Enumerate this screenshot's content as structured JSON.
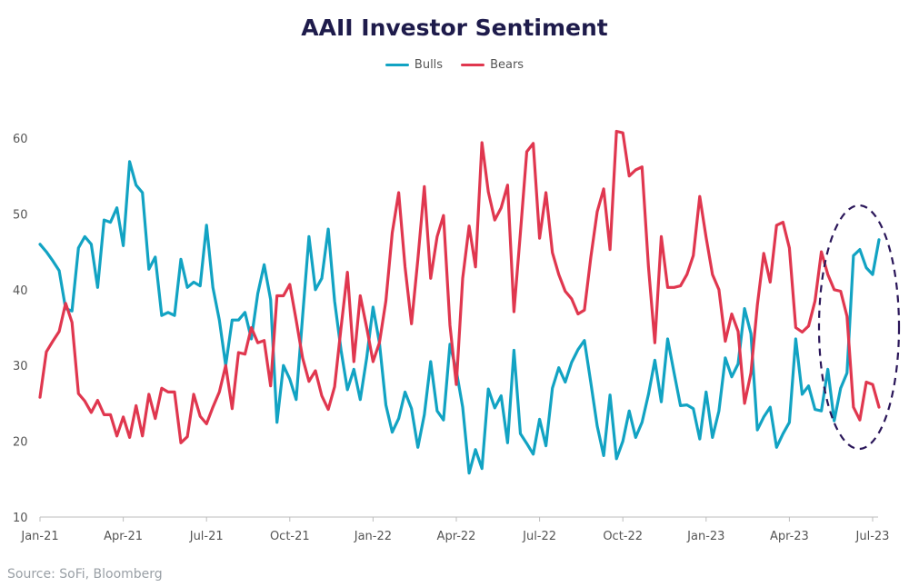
{
  "chart_data": {
    "type": "line",
    "title": "AAII Investor Sentiment",
    "xlabel": "",
    "ylabel": "",
    "ylim": [
      10,
      60
    ],
    "yticks": [
      10,
      20,
      30,
      40,
      50,
      60
    ],
    "x_tick_labels": [
      "Jan-21",
      "Apr-21",
      "Jul-21",
      "Oct-21",
      "Jan-22",
      "Apr-22",
      "Jul-22",
      "Oct-22",
      "Jan-23",
      "Apr-23",
      "Jul-23"
    ],
    "x_unit": "weeks since Jan-21",
    "x_ticks_week": [
      0,
      13,
      26,
      39,
      52,
      65,
      78,
      91,
      104,
      117,
      130
    ],
    "series": [
      {
        "name": "Bulls",
        "color": "#12a3c3",
        "values": [
          46.0,
          45.0,
          43.8,
          42.5,
          37.5,
          37.2,
          45.5,
          47.0,
          46.0,
          40.3,
          49.2,
          48.9,
          50.8,
          45.8,
          56.9,
          53.8,
          52.8,
          42.7,
          44.3,
          36.6,
          37.0,
          36.6,
          44.0,
          40.3,
          41.0,
          40.5,
          48.5,
          40.3,
          36.0,
          30.0,
          36.0,
          36.0,
          37.0,
          33.5,
          39.5,
          43.3,
          38.7,
          22.5,
          30.0,
          28.2,
          25.5,
          36.5,
          47.0,
          40.0,
          41.5,
          48.0,
          38.5,
          32.0,
          26.8,
          29.5,
          25.5,
          31.0,
          37.7,
          33.0,
          24.8,
          21.2,
          23.0,
          26.5,
          24.3,
          19.2,
          23.5,
          30.5,
          24.0,
          22.8,
          32.8,
          29.3,
          24.5,
          15.8,
          18.9,
          16.4,
          26.9,
          24.4,
          26.0,
          19.8,
          32.0,
          21.0,
          19.7,
          18.3,
          22.9,
          19.4,
          27.0,
          29.7,
          27.8,
          30.4,
          32.1,
          33.3,
          27.7,
          22.0,
          18.1,
          26.1,
          17.7,
          20.0,
          24.0,
          20.5,
          22.5,
          26.2,
          30.7,
          25.2,
          33.5,
          29.0,
          24.7,
          24.8,
          24.3,
          20.3,
          26.5,
          20.5,
          24.0,
          31.0,
          28.5,
          30.2,
          37.5,
          34.2,
          21.5,
          23.2,
          24.5,
          19.2,
          21.0,
          22.5,
          33.5,
          26.2,
          27.3,
          24.2,
          24.0,
          29.5,
          22.7,
          27.0,
          29.0,
          44.5,
          45.3,
          42.9,
          42.0,
          46.6
        ]
      },
      {
        "name": "Bears",
        "color": "#e0374f",
        "values": [
          25.8,
          31.8,
          33.2,
          34.5,
          38.2,
          35.7,
          26.3,
          25.3,
          23.8,
          25.4,
          23.5,
          23.5,
          20.7,
          23.2,
          20.5,
          24.7,
          20.7,
          26.2,
          23.0,
          27.0,
          26.5,
          26.5,
          19.8,
          20.6,
          26.2,
          23.3,
          22.3,
          24.5,
          26.5,
          30.0,
          24.3,
          31.7,
          31.5,
          35.0,
          33.0,
          33.3,
          27.3,
          39.2,
          39.2,
          40.7,
          36.0,
          31.0,
          27.9,
          29.3,
          26.0,
          24.2,
          27.2,
          35.0,
          42.3,
          30.5,
          39.2,
          35.0,
          30.5,
          33.0,
          38.5,
          47.5,
          52.8,
          43.0,
          35.5,
          44.0,
          53.6,
          41.5,
          47.0,
          49.8,
          35.3,
          27.5,
          41.5,
          48.4,
          43.0,
          59.4,
          52.9,
          49.2,
          50.8,
          53.8,
          37.1,
          47.5,
          58.2,
          59.3,
          46.8,
          52.8,
          44.9,
          42.0,
          39.8,
          38.8,
          36.8,
          37.3,
          44.3,
          50.3,
          53.3,
          45.3,
          60.9,
          60.7,
          55.0,
          55.8,
          56.2,
          43.0,
          33.0,
          47.0,
          40.3,
          40.3,
          40.5,
          42.0,
          44.5,
          52.3,
          46.9,
          42.0,
          40.0,
          33.2,
          36.8,
          34.5,
          25.0,
          29.0,
          38.0,
          44.8,
          41.0,
          48.5,
          48.9,
          45.5,
          35.0,
          34.4,
          35.2,
          38.5,
          45.0,
          42.0,
          40.0,
          39.8,
          36.5,
          24.5,
          22.8,
          27.8,
          27.5,
          24.5
        ]
      }
    ],
    "annotation": "dashed ellipse highlighting the most recent weeks (Jun-Jul 2023)"
  },
  "source": "Source: SoFi, Bloomberg"
}
